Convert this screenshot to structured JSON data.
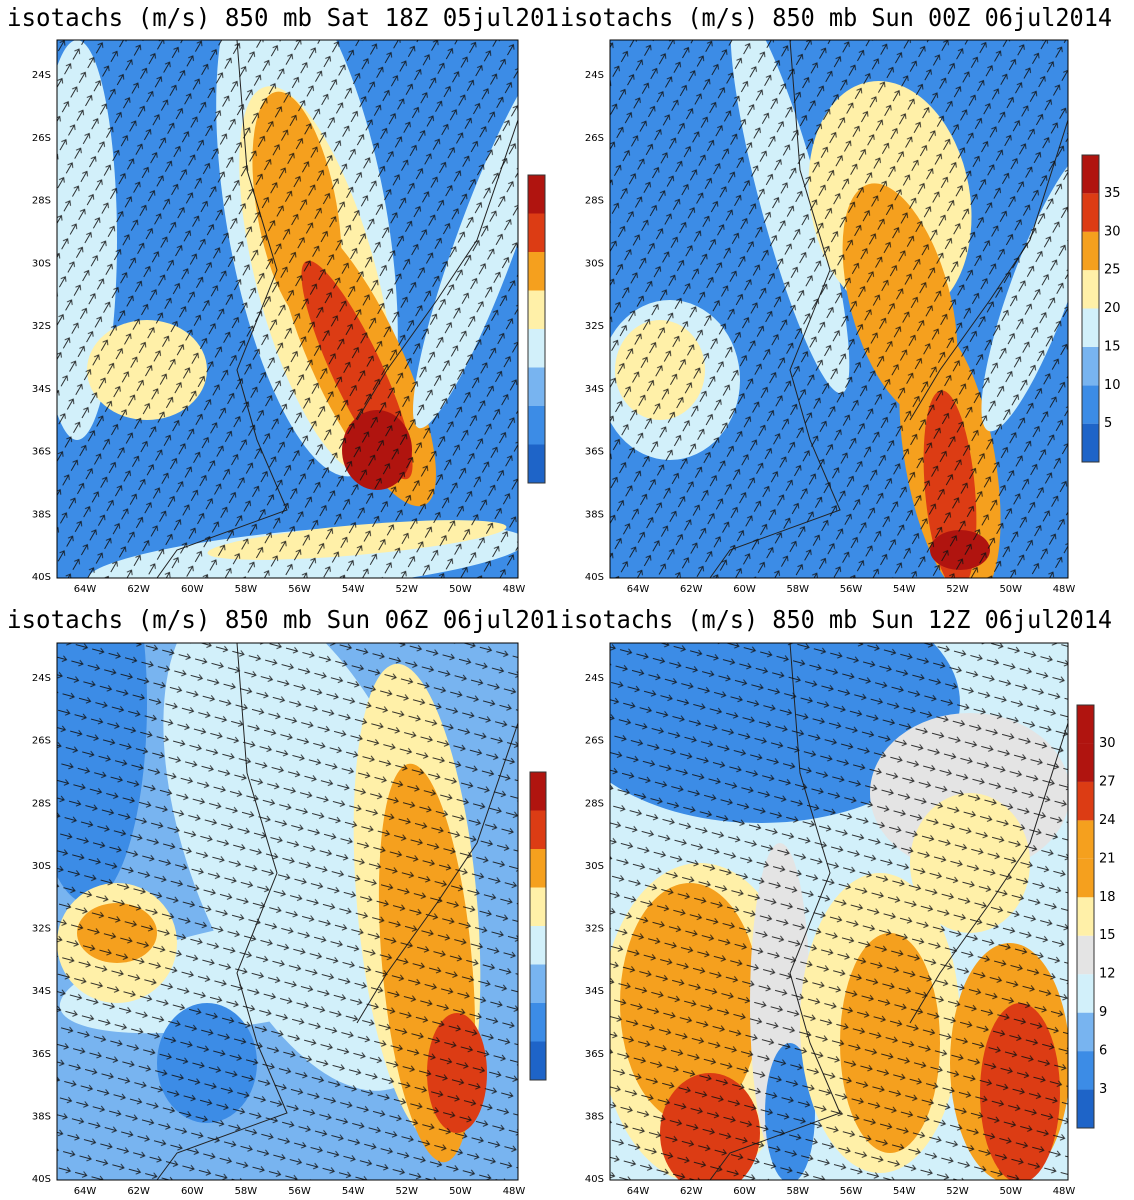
{
  "panels": [
    {
      "title": "isotachs (m/s) 850 mb Sat 18Z 05jul201"
    },
    {
      "title": "isotachs (m/s) 850 mb Sun 00Z 06jul2014",
      "colorbar_labels": [
        5,
        10,
        15,
        20,
        25,
        30,
        35
      ]
    },
    {
      "title": "isotachs (m/s) 850 mb Sun 06Z 06jul201"
    },
    {
      "title": "isotachs (m/s) 850 mb Sun 12Z 06jul2014",
      "colorbar_labels": [
        3,
        6,
        9,
        12,
        15,
        18,
        21,
        24,
        27,
        30
      ]
    }
  ],
  "lat_labels": [
    "24S",
    "26S",
    "28S",
    "30S",
    "32S",
    "34S",
    "36S",
    "38S",
    "40S"
  ],
  "lon_labels": [
    "64W",
    "62W",
    "60W",
    "58W",
    "56W",
    "54W",
    "52W",
    "50W",
    "48W"
  ]
}
